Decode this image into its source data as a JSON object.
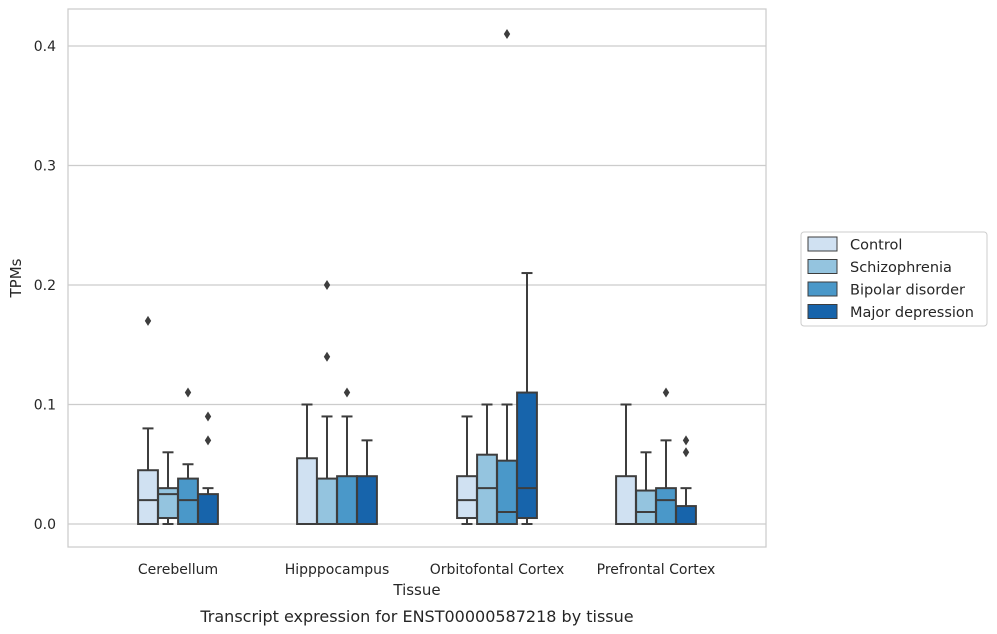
{
  "caption": "Transcript expression for ENST00000587218 by tissue",
  "chart_data": {
    "type": "boxplot",
    "xlabel": "Tissue",
    "ylabel": "TPMs",
    "ylim": [
      -0.02,
      0.43
    ],
    "yticks": [
      "0.0",
      "0.1",
      "0.2",
      "0.3",
      "0.4"
    ],
    "grid": "horizontal",
    "legend_position": "right",
    "categories": [
      "Cerebellum",
      "Hipppocampus",
      "Orbitofontal Cortex",
      "Prefrontal Cortex"
    ],
    "series": [
      {
        "name": "Control",
        "color": "#d0e1f2",
        "boxes": [
          {
            "whislo": 0.0,
            "q1": 0.0,
            "med": 0.02,
            "q3": 0.045,
            "whishi": 0.08,
            "fliers": [
              0.17
            ]
          },
          {
            "whislo": 0.0,
            "q1": 0.0,
            "med": 0.0,
            "q3": 0.055,
            "whishi": 0.1,
            "fliers": []
          },
          {
            "whislo": 0.0,
            "q1": 0.005,
            "med": 0.02,
            "q3": 0.04,
            "whishi": 0.09,
            "fliers": []
          },
          {
            "whislo": 0.0,
            "q1": 0.0,
            "med": 0.0,
            "q3": 0.04,
            "whishi": 0.1,
            "fliers": []
          }
        ]
      },
      {
        "name": "Schizophrenia",
        "color": "#94c4df",
        "boxes": [
          {
            "whislo": 0.0,
            "q1": 0.005,
            "med": 0.025,
            "q3": 0.03,
            "whishi": 0.06,
            "fliers": []
          },
          {
            "whislo": 0.0,
            "q1": 0.0,
            "med": 0.0,
            "q3": 0.038,
            "whishi": 0.09,
            "fliers": [
              0.14,
              0.2
            ]
          },
          {
            "whislo": 0.0,
            "q1": 0.0,
            "med": 0.03,
            "q3": 0.058,
            "whishi": 0.1,
            "fliers": []
          },
          {
            "whislo": 0.0,
            "q1": 0.0,
            "med": 0.01,
            "q3": 0.028,
            "whishi": 0.06,
            "fliers": []
          }
        ]
      },
      {
        "name": "Bipolar disorder",
        "color": "#4a98c9",
        "boxes": [
          {
            "whislo": 0.0,
            "q1": 0.0,
            "med": 0.02,
            "q3": 0.038,
            "whishi": 0.05,
            "fliers": [
              0.11
            ]
          },
          {
            "whislo": 0.0,
            "q1": 0.0,
            "med": 0.0,
            "q3": 0.04,
            "whishi": 0.09,
            "fliers": [
              0.11
            ]
          },
          {
            "whislo": 0.0,
            "q1": 0.0,
            "med": 0.01,
            "q3": 0.053,
            "whishi": 0.1,
            "fliers": [
              0.41
            ]
          },
          {
            "whislo": 0.0,
            "q1": 0.0,
            "med": 0.02,
            "q3": 0.03,
            "whishi": 0.07,
            "fliers": [
              0.11
            ]
          }
        ]
      },
      {
        "name": "Major depression",
        "color": "#1764ab",
        "boxes": [
          {
            "whislo": 0.0,
            "q1": 0.0,
            "med": 0.0,
            "q3": 0.025,
            "whishi": 0.03,
            "fliers": [
              0.07,
              0.09
            ]
          },
          {
            "whislo": 0.0,
            "q1": 0.0,
            "med": 0.0,
            "q3": 0.04,
            "whishi": 0.07,
            "fliers": []
          },
          {
            "whislo": 0.0,
            "q1": 0.005,
            "med": 0.03,
            "q3": 0.11,
            "whishi": 0.21,
            "fliers": []
          },
          {
            "whislo": 0.0,
            "q1": 0.0,
            "med": 0.0,
            "q3": 0.015,
            "whishi": 0.03,
            "fliers": [
              0.06,
              0.07
            ]
          }
        ]
      }
    ]
  }
}
